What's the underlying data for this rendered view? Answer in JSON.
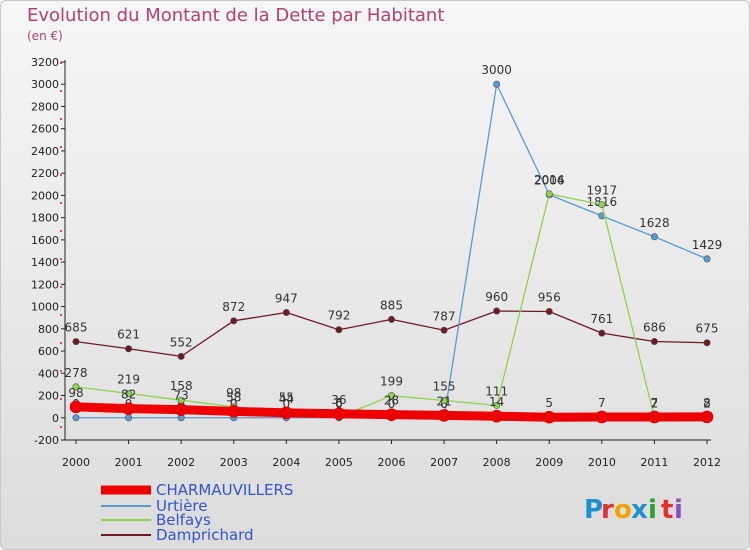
{
  "title": "Evolution du Montant de la Dette par Habitant",
  "unit": "(en €)",
  "brand": {
    "letters": [
      "P",
      "r",
      "o",
      "x",
      "i",
      "t",
      "i"
    ],
    "colors": [
      "#1e90d0",
      "#e23030",
      "#f5a000",
      "#1e90d0",
      "#2ca02c",
      "#e23030",
      "#8a4fbf"
    ]
  },
  "chart_data": {
    "type": "line",
    "x": [
      "2000",
      "2001",
      "2002",
      "2003",
      "2004",
      "2005",
      "2006",
      "2007",
      "2008",
      "2009",
      "2010",
      "2011",
      "2012"
    ],
    "ylim": [
      -200,
      3200
    ],
    "yticks": [
      -200,
      0,
      200,
      400,
      600,
      800,
      1000,
      1200,
      1400,
      1600,
      1800,
      2000,
      2200,
      2400,
      2600,
      2800,
      3000,
      3200
    ],
    "grid": false,
    "legend_position": "bottom-left",
    "series": [
      {
        "name": "CHARMAUVILLERS",
        "color": "#ee0000",
        "values": [
          98,
          82,
          73,
          58,
          44,
          36,
          28,
          21,
          14,
          5,
          7,
          7,
          8
        ],
        "labels": [
          "98",
          "82",
          "73",
          "58",
          "44",
          "36",
          "28",
          "21",
          "14",
          "5",
          "7",
          "7",
          "8"
        ]
      },
      {
        "name": "Urtière",
        "color": "#5a9ad0",
        "values": [
          0,
          0,
          0,
          0,
          0,
          0,
          0,
          0,
          3000,
          2006,
          1816,
          1628,
          1429
        ],
        "labels": [
          "0",
          "0",
          "0",
          "0",
          "0",
          "0",
          "0",
          "0",
          "3000",
          "2006",
          "1816",
          "1628",
          "1429"
        ]
      },
      {
        "name": "Belfays",
        "color": "#8ed34e",
        "values": [
          278,
          219,
          158,
          98,
          55,
          6,
          199,
          155,
          111,
          2014,
          1917,
          2,
          2
        ],
        "labels": [
          "278",
          "219",
          "158",
          "98",
          "55",
          "6",
          "199",
          "155",
          "111",
          "2014",
          "1917",
          "2",
          "2"
        ]
      },
      {
        "name": "Damprichard",
        "color": "#6e1a24",
        "values": [
          685,
          621,
          552,
          872,
          947,
          792,
          885,
          787,
          960,
          956,
          761,
          686,
          675
        ],
        "labels": [
          "685",
          "621",
          "552",
          "872",
          "947",
          "792",
          "885",
          "787",
          "960",
          "956",
          "761",
          "686",
          "675"
        ]
      }
    ]
  }
}
